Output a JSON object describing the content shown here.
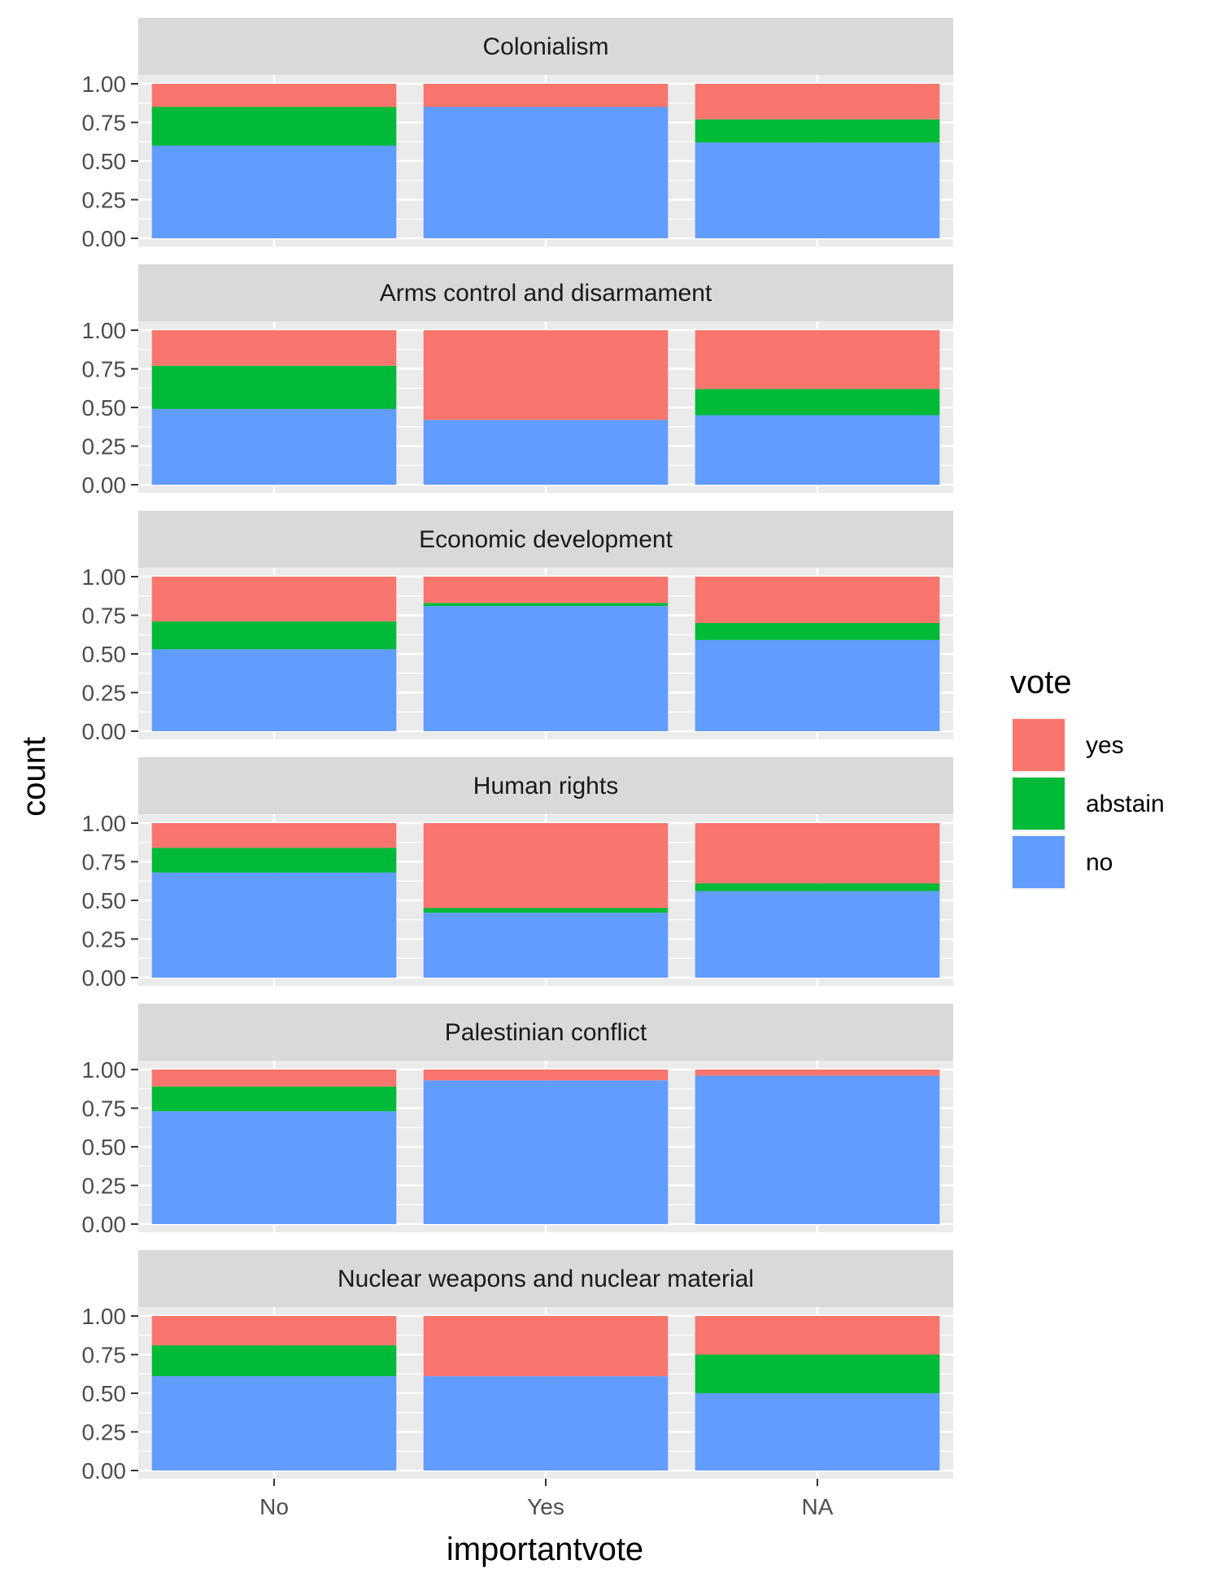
{
  "chart_data": {
    "type": "bar",
    "stacked": true,
    "position": "fill",
    "xlabel": "importantvote",
    "ylabel": "count",
    "categories": [
      "No",
      "Yes",
      "NA"
    ],
    "ylim": [
      0,
      1
    ],
    "yticks": [
      "0.00",
      "0.25",
      "0.50",
      "0.75",
      "1.00"
    ],
    "legend": {
      "title": "vote",
      "placement": "right",
      "entries": [
        {
          "label": "yes",
          "color": "#F8766D"
        },
        {
          "label": "abstain",
          "color": "#00BA38"
        },
        {
          "label": "no",
          "color": "#619CFF"
        }
      ]
    },
    "panel_background": "#EBEBEB",
    "strip_background": "#D9D9D9",
    "grid": true,
    "facets": [
      {
        "title": "Colonialism",
        "series": [
          {
            "name": "no",
            "values": [
              0.6,
              0.85,
              0.62
            ]
          },
          {
            "name": "abstain",
            "values": [
              0.25,
              0.0,
              0.15
            ]
          },
          {
            "name": "yes",
            "values": [
              0.15,
              0.15,
              0.23
            ]
          }
        ]
      },
      {
        "title": "Arms control and disarmament",
        "series": [
          {
            "name": "no",
            "values": [
              0.49,
              0.42,
              0.45
            ]
          },
          {
            "name": "abstain",
            "values": [
              0.28,
              0.0,
              0.17
            ]
          },
          {
            "name": "yes",
            "values": [
              0.23,
              0.58,
              0.38
            ]
          }
        ]
      },
      {
        "title": "Economic development",
        "series": [
          {
            "name": "no",
            "values": [
              0.53,
              0.81,
              0.59
            ]
          },
          {
            "name": "abstain",
            "values": [
              0.18,
              0.02,
              0.11
            ]
          },
          {
            "name": "yes",
            "values": [
              0.29,
              0.17,
              0.3
            ]
          }
        ]
      },
      {
        "title": "Human rights",
        "series": [
          {
            "name": "no",
            "values": [
              0.68,
              0.42,
              0.56
            ]
          },
          {
            "name": "abstain",
            "values": [
              0.16,
              0.03,
              0.05
            ]
          },
          {
            "name": "yes",
            "values": [
              0.16,
              0.55,
              0.39
            ]
          }
        ]
      },
      {
        "title": "Palestinian conflict",
        "series": [
          {
            "name": "no",
            "values": [
              0.73,
              0.93,
              0.96
            ]
          },
          {
            "name": "abstain",
            "values": [
              0.16,
              0.0,
              0.0
            ]
          },
          {
            "name": "yes",
            "values": [
              0.11,
              0.07,
              0.04
            ]
          }
        ]
      },
      {
        "title": "Nuclear weapons and nuclear material",
        "series": [
          {
            "name": "no",
            "values": [
              0.61,
              0.61,
              0.5
            ]
          },
          {
            "name": "abstain",
            "values": [
              0.2,
              0.0,
              0.25
            ]
          },
          {
            "name": "yes",
            "values": [
              0.19,
              0.39,
              0.25
            ]
          }
        ]
      }
    ]
  }
}
